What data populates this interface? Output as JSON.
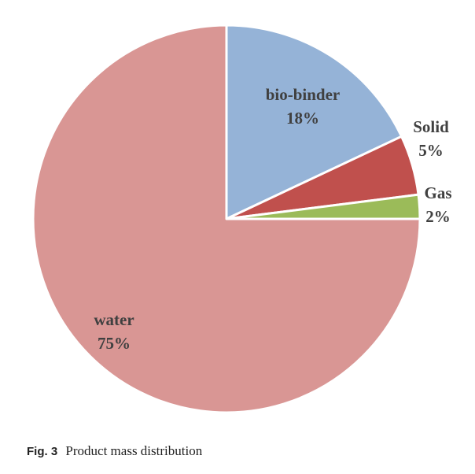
{
  "chart_data": {
    "type": "pie",
    "slices": [
      {
        "label": "bio-binder",
        "value": 18,
        "value_label": "18%",
        "color": "#95b3d7"
      },
      {
        "label": "Solid",
        "value": 5,
        "value_label": "5%",
        "color": "#c0504d"
      },
      {
        "label": "Gas",
        "value": 2,
        "value_label": "2%",
        "color": "#9bbb59"
      },
      {
        "label": "water",
        "value": 75,
        "value_label": "75%",
        "color": "#d99694"
      }
    ],
    "start_angle": "12 o'clock",
    "direction": "clockwise",
    "slice_border_color": "#ffffff",
    "legend": "none"
  },
  "caption": {
    "number": "Fig. 3",
    "text": "Product mass distribution"
  }
}
